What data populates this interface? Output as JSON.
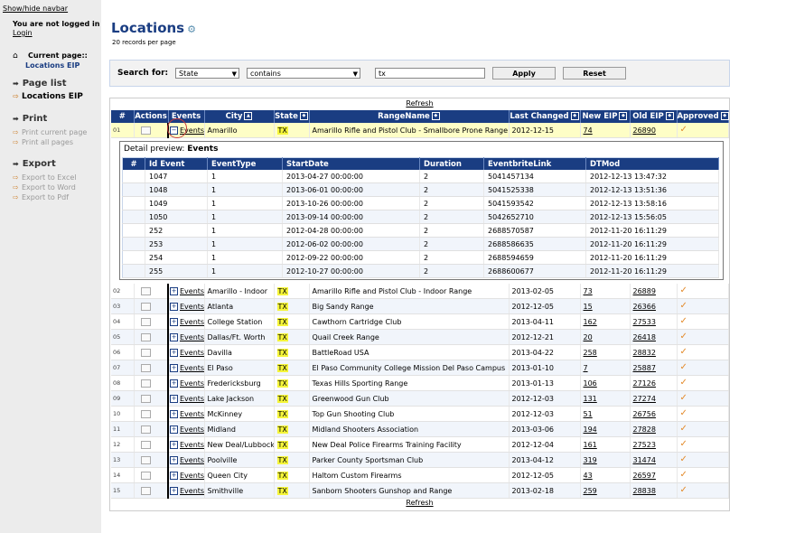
{
  "navbar": {
    "toggle_label": "Show/hide navbar",
    "not_logged_text": "You are not logged in",
    "login_label": "Login",
    "current_page_label": "Current page::",
    "current_page_value": "Locations EIP",
    "page_list_title": "Page list",
    "page_list_items": [
      "Locations EIP"
    ],
    "print_title": "Print",
    "print_items": [
      "Print current page",
      "Print all pages"
    ],
    "export_title": "Export",
    "export_items": [
      "Export to Excel",
      "Export to Word",
      "Export to Pdf"
    ]
  },
  "page": {
    "title": "Locations",
    "records_per_page": "20 records per page"
  },
  "search": {
    "label": "Search for:",
    "field_value": "State",
    "operator_value": "contains",
    "query_value": "tx",
    "apply_label": "Apply",
    "reset_label": "Reset"
  },
  "grid": {
    "refresh_label": "Refresh",
    "columns": [
      "#",
      "Actions",
      "Events",
      "City",
      "State",
      "RangeName",
      "Last Changed",
      "New EIP",
      "Old EIP",
      "Approved"
    ],
    "events_link_label": "Events",
    "approved_icon": "checkmark-icon",
    "approved_color": "#e38a2a",
    "rows": [
      {
        "num": "01",
        "city": "Amarillo",
        "state": "TX",
        "range": "Amarillo Rifle and Pistol Club - Smallbore Prone Range",
        "changed": "2012-12-15",
        "new_eip": "74",
        "old_eip": "26890"
      },
      {
        "num": "02",
        "city": "Amarillo - Indoor",
        "state": "TX",
        "range": "Amarillo Rifle and Pistol Club - Indoor Range",
        "changed": "2013-02-05",
        "new_eip": "73",
        "old_eip": "26889"
      },
      {
        "num": "03",
        "city": "Atlanta",
        "state": "TX",
        "range": "Big Sandy Range",
        "changed": "2012-12-05",
        "new_eip": "15",
        "old_eip": "26366"
      },
      {
        "num": "04",
        "city": "College Station",
        "state": "TX",
        "range": "Cawthorn Cartridge Club",
        "changed": "2013-04-11",
        "new_eip": "162",
        "old_eip": "27533"
      },
      {
        "num": "05",
        "city": "Dallas/Ft. Worth",
        "state": "TX",
        "range": "Quail Creek Range",
        "changed": "2012-12-21",
        "new_eip": "20",
        "old_eip": "26418"
      },
      {
        "num": "06",
        "city": "Davilla",
        "state": "TX",
        "range": "BattleRoad USA",
        "changed": "2013-04-22",
        "new_eip": "258",
        "old_eip": "28832"
      },
      {
        "num": "07",
        "city": "El Paso",
        "state": "TX",
        "range": "El Paso Community College Mission Del Paso Campus",
        "changed": "2013-01-10",
        "new_eip": "7",
        "old_eip": "25887"
      },
      {
        "num": "08",
        "city": "Fredericksburg",
        "state": "TX",
        "range": "Texas Hills Sporting Range",
        "changed": "2013-01-13",
        "new_eip": "106",
        "old_eip": "27126"
      },
      {
        "num": "09",
        "city": "Lake Jackson",
        "state": "TX",
        "range": "Greenwood Gun Club",
        "changed": "2012-12-03",
        "new_eip": "131",
        "old_eip": "27274"
      },
      {
        "num": "10",
        "city": "McKinney",
        "state": "TX",
        "range": "Top Gun Shooting Club",
        "changed": "2012-12-03",
        "new_eip": "51",
        "old_eip": "26756"
      },
      {
        "num": "11",
        "city": "Midland",
        "state": "TX",
        "range": "Midland Shooters Association",
        "changed": "2013-03-06",
        "new_eip": "194",
        "old_eip": "27828"
      },
      {
        "num": "12",
        "city": "New Deal/Lubbock",
        "state": "TX",
        "range": "New Deal Police Firearms Training Facility",
        "changed": "2012-12-04",
        "new_eip": "161",
        "old_eip": "27523"
      },
      {
        "num": "13",
        "city": "Poolville",
        "state": "TX",
        "range": "Parker County Sportsman Club",
        "changed": "2013-04-12",
        "new_eip": "319",
        "old_eip": "31474"
      },
      {
        "num": "14",
        "city": "Queen City",
        "state": "TX",
        "range": "Haltom Custom Firearms",
        "changed": "2012-12-05",
        "new_eip": "43",
        "old_eip": "26597"
      },
      {
        "num": "15",
        "city": "Smithville",
        "state": "TX",
        "range": "Sanborn Shooters Gunshop and Range",
        "changed": "2013-02-18",
        "new_eip": "259",
        "old_eip": "28838"
      }
    ]
  },
  "detail": {
    "label": "Detail preview:",
    "title": "Events",
    "columns": [
      "#",
      "Id Event",
      "EventType",
      "StartDate",
      "Duration",
      "EventbriteLink",
      "DTMod"
    ],
    "rows": [
      {
        "id": "1047",
        "type": "1",
        "start": "2013-04-27 00:00:00",
        "duration": "2",
        "link": "5041457134",
        "dtmod": "2012-12-13 13:47:32"
      },
      {
        "id": "1048",
        "type": "1",
        "start": "2013-06-01 00:00:00",
        "duration": "2",
        "link": "5041525338",
        "dtmod": "2012-12-13 13:51:36"
      },
      {
        "id": "1049",
        "type": "1",
        "start": "2013-10-26 00:00:00",
        "duration": "2",
        "link": "5041593542",
        "dtmod": "2012-12-13 13:58:16"
      },
      {
        "id": "1050",
        "type": "1",
        "start": "2013-09-14 00:00:00",
        "duration": "2",
        "link": "5042652710",
        "dtmod": "2012-12-13 15:56:05"
      },
      {
        "id": "252",
        "type": "1",
        "start": "2012-04-28 00:00:00",
        "duration": "2",
        "link": "2688570587",
        "dtmod": "2012-11-20 16:11:29"
      },
      {
        "id": "253",
        "type": "1",
        "start": "2012-06-02 00:00:00",
        "duration": "2",
        "link": "2688586635",
        "dtmod": "2012-11-20 16:11:29"
      },
      {
        "id": "254",
        "type": "1",
        "start": "2012-09-22 00:00:00",
        "duration": "2",
        "link": "2688594659",
        "dtmod": "2012-11-20 16:11:29"
      },
      {
        "id": "255",
        "type": "1",
        "start": "2012-10-27 00:00:00",
        "duration": "2",
        "link": "2688600677",
        "dtmod": "2012-11-20 16:11:29"
      }
    ]
  }
}
